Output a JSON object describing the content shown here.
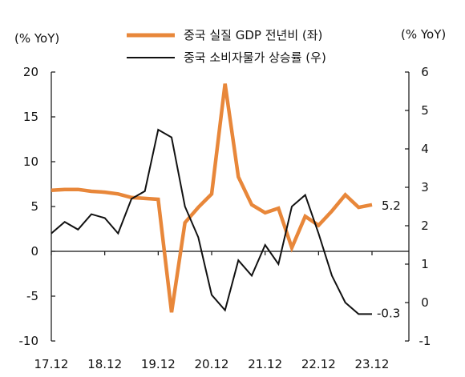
{
  "chart_data": {
    "type": "line",
    "y_left_unit": "(% YoY)",
    "y_right_unit": "(% YoY)",
    "y_left_range": [
      -10,
      20
    ],
    "y_left_ticks": [
      "20",
      "15",
      "10",
      "5",
      "0",
      "-5",
      "-10"
    ],
    "y_right_range": [
      -1,
      6
    ],
    "y_right_ticks": [
      "6",
      "5",
      "4",
      "3",
      "2",
      "1",
      "0",
      "-1"
    ],
    "x_ticks": [
      "17.12",
      "18.12",
      "19.12",
      "20.12",
      "21.12",
      "22.12",
      "23.12"
    ],
    "legend_position": "top",
    "series": [
      {
        "name": "중국 실질 GDP 전년비 (좌)",
        "axis": "left",
        "color": "#E8873A",
        "x": [
          "17.12",
          "18.3",
          "18.6",
          "18.9",
          "18.12",
          "19.3",
          "19.6",
          "19.9",
          "19.12",
          "20.3",
          "20.6",
          "20.9",
          "20.12",
          "21.3",
          "21.6",
          "21.9",
          "21.12",
          "22.3",
          "22.6",
          "22.9",
          "22.12",
          "23.3",
          "23.6",
          "23.9",
          "23.12"
        ],
        "values": [
          6.8,
          6.9,
          6.9,
          6.7,
          6.6,
          6.4,
          6.0,
          5.9,
          5.8,
          -6.8,
          3.2,
          4.9,
          6.4,
          18.7,
          8.3,
          5.2,
          4.3,
          4.8,
          0.4,
          3.9,
          2.9,
          4.5,
          6.3,
          4.9,
          5.2
        ],
        "end_label": "5.2"
      },
      {
        "name": "중국 소비자물가 상승률 (우)",
        "axis": "right",
        "color": "#111111",
        "x": [
          "17.12",
          "18.3",
          "18.6",
          "18.9",
          "18.12",
          "19.3",
          "19.6",
          "19.9",
          "19.12",
          "20.3",
          "20.6",
          "20.9",
          "20.12",
          "21.3",
          "21.6",
          "21.9",
          "21.12",
          "22.3",
          "22.6",
          "22.9",
          "22.12",
          "23.3",
          "23.6",
          "23.9",
          "23.12"
        ],
        "values": [
          1.8,
          2.1,
          1.9,
          2.3,
          2.2,
          1.8,
          2.7,
          2.9,
          4.5,
          4.3,
          2.5,
          1.7,
          0.2,
          -0.2,
          1.1,
          0.7,
          1.5,
          1.0,
          2.5,
          2.8,
          1.8,
          0.7,
          0.0,
          -0.3,
          -0.3
        ],
        "end_label": "-0.3"
      }
    ],
    "colors": {
      "gdp": "#E8873A",
      "cpi": "#111111",
      "axis": "#111111"
    }
  }
}
